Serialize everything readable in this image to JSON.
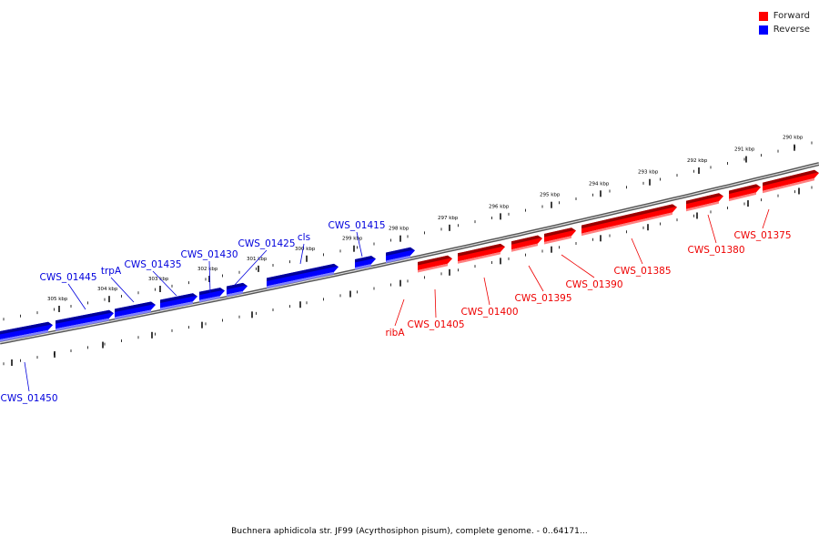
{
  "legend": {
    "forward_label": "Forward",
    "reverse_label": "Reverse",
    "forward_color": "#ff0000",
    "reverse_color": "#0000ff"
  },
  "caption": "Buchnera aphidicola str. JF99 (Acyrthosiphon pisum), complete genome. - 0..64171...",
  "scale_ticks": [
    "290 kbp",
    "291 kbp",
    "292 kbp",
    "293 kbp",
    "294 kbp",
    "295 kbp",
    "296 kbp",
    "297 kbp",
    "298 kbp",
    "299 kbp",
    "300 kbp",
    "301 kbp",
    "302 kbp",
    "303 kbp",
    "304 kbp",
    "305 kbp"
  ],
  "genes": [
    {
      "name": "CWS_01375",
      "strand": "forward"
    },
    {
      "name": "CWS_01380",
      "strand": "forward"
    },
    {
      "name": "CWS_01385",
      "strand": "forward"
    },
    {
      "name": "CWS_01390",
      "strand": "forward"
    },
    {
      "name": "CWS_01395",
      "strand": "forward"
    },
    {
      "name": "CWS_01400",
      "strand": "forward"
    },
    {
      "name": "CWS_01405",
      "strand": "forward"
    },
    {
      "name": "ribA",
      "strand": "forward"
    },
    {
      "name": "CWS_01415",
      "strand": "reverse"
    },
    {
      "name": "cls",
      "strand": "reverse"
    },
    {
      "name": "CWS_01425",
      "strand": "reverse"
    },
    {
      "name": "CWS_01430",
      "strand": "reverse"
    },
    {
      "name": "CWS_01435",
      "strand": "reverse"
    },
    {
      "name": "trpA",
      "strand": "reverse"
    },
    {
      "name": "CWS_01445",
      "strand": "reverse"
    },
    {
      "name": "CWS_01450",
      "strand": "reverse"
    }
  ]
}
